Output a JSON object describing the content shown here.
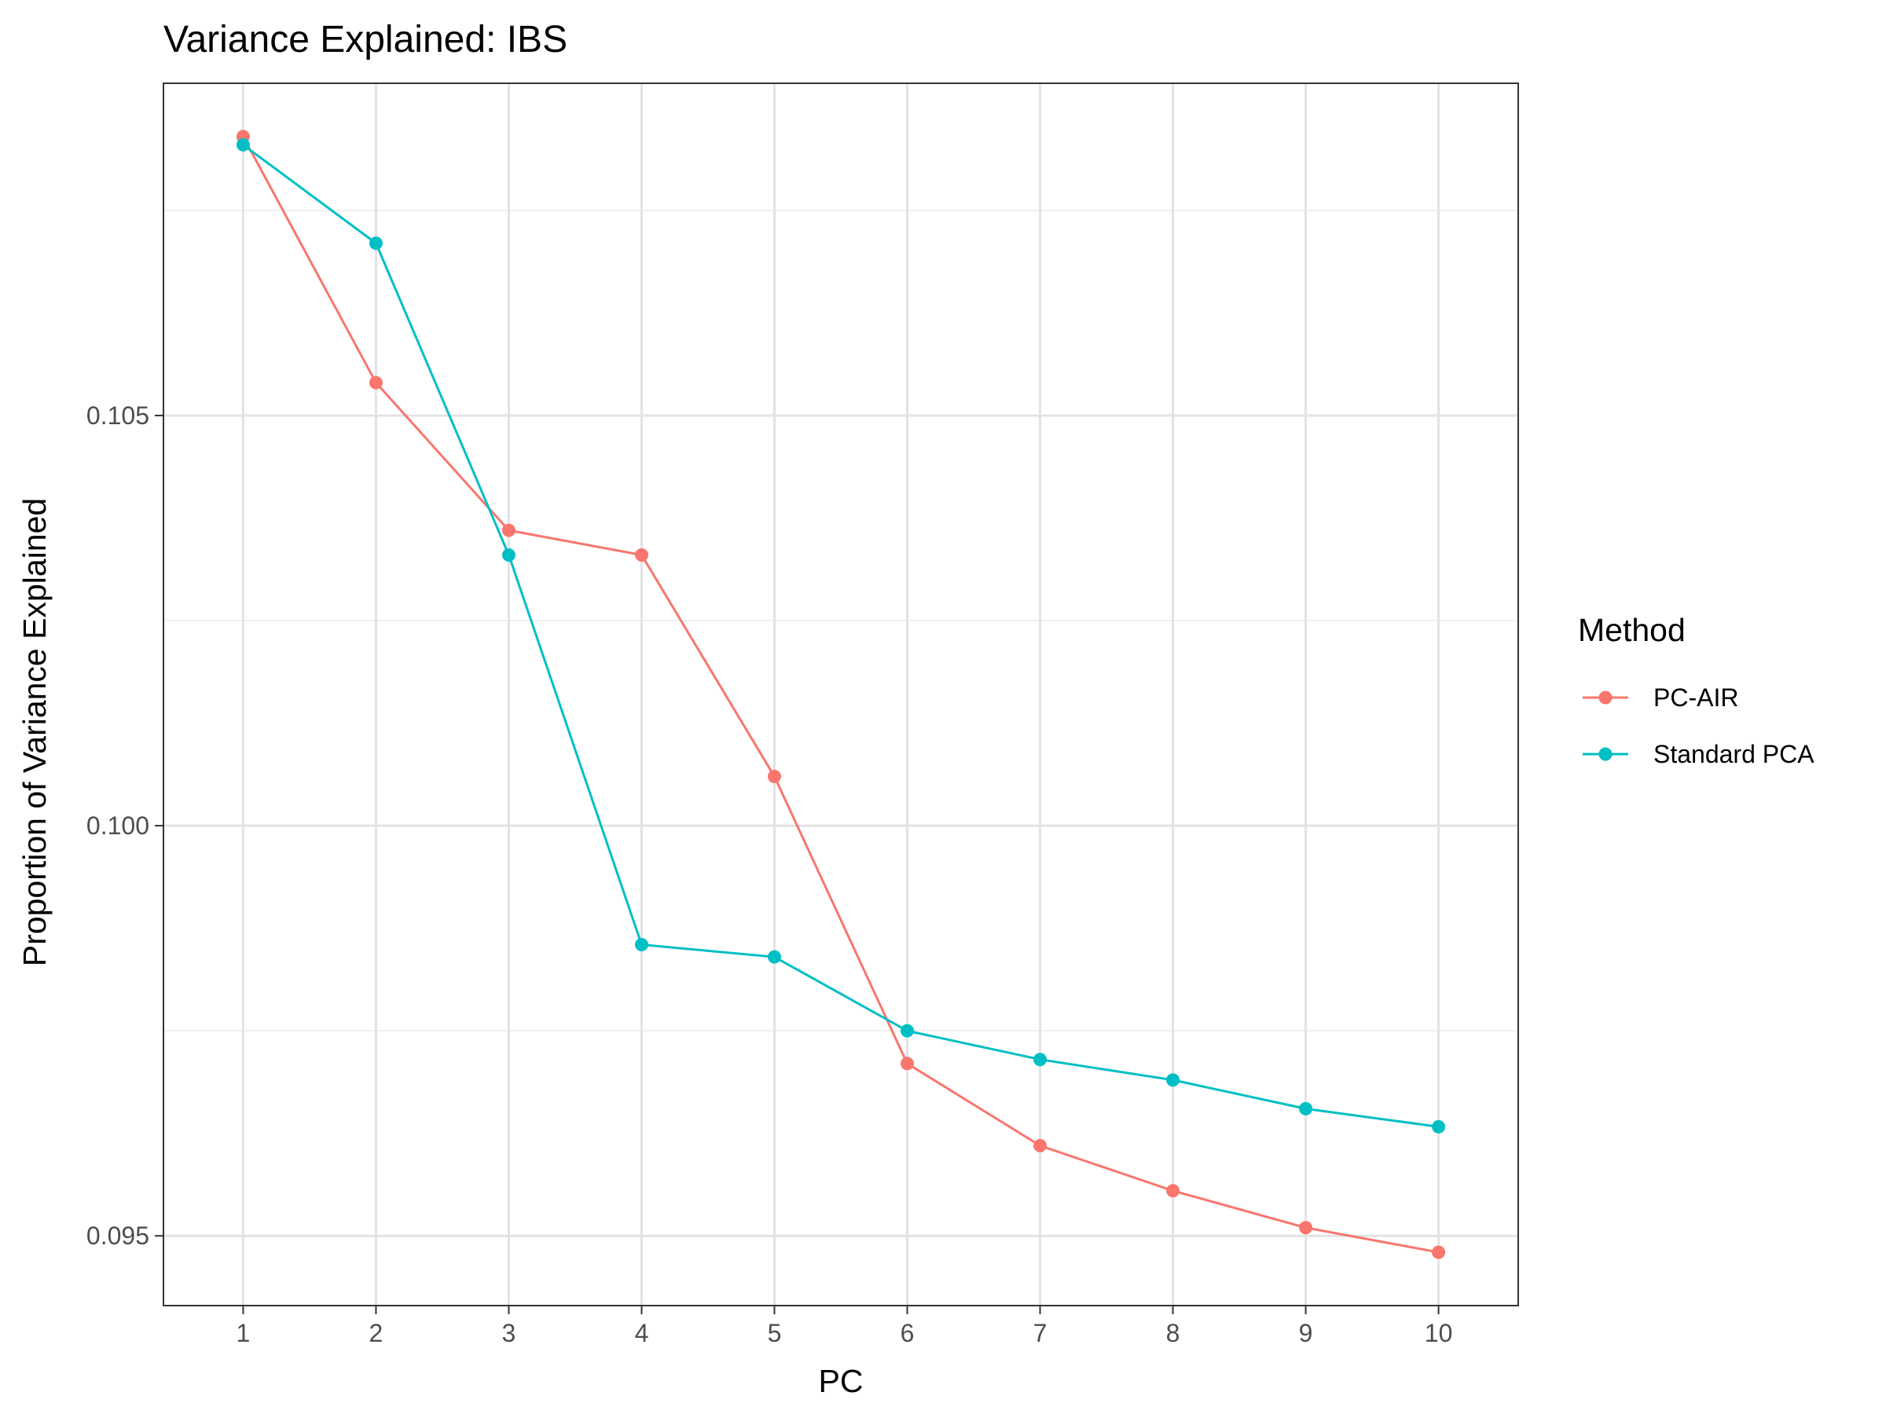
{
  "chart_data": {
    "type": "line",
    "title": "Variance Explained: IBS",
    "xlabel": "PC",
    "ylabel": "Proportion of Variance Explained",
    "x": [
      1,
      2,
      3,
      4,
      5,
      6,
      7,
      8,
      9,
      10
    ],
    "x_tick_labels": [
      "1",
      "2",
      "3",
      "4",
      "5",
      "6",
      "7",
      "8",
      "9",
      "10"
    ],
    "y_ticks": [
      0.095,
      0.1,
      0.105
    ],
    "y_tick_labels": [
      "0.095",
      "0.100",
      "0.105"
    ],
    "xlim": [
      0.4,
      10.6
    ],
    "ylim": [
      0.09415,
      0.10905
    ],
    "grid": true,
    "legend_title": "Method",
    "legend_position": "right",
    "series": [
      {
        "name": "PC-AIR",
        "color": "#F8766D",
        "values": [
          0.1084,
          0.1054,
          0.1036,
          0.1033,
          0.1006,
          0.0971,
          0.0961,
          0.09555,
          0.0951,
          0.0948
        ]
      },
      {
        "name": "Standard PCA",
        "color": "#00BFC4",
        "values": [
          0.1083,
          0.1071,
          0.1033,
          0.09855,
          0.0984,
          0.0975,
          0.09715,
          0.0969,
          0.09655,
          0.09633
        ]
      }
    ]
  }
}
